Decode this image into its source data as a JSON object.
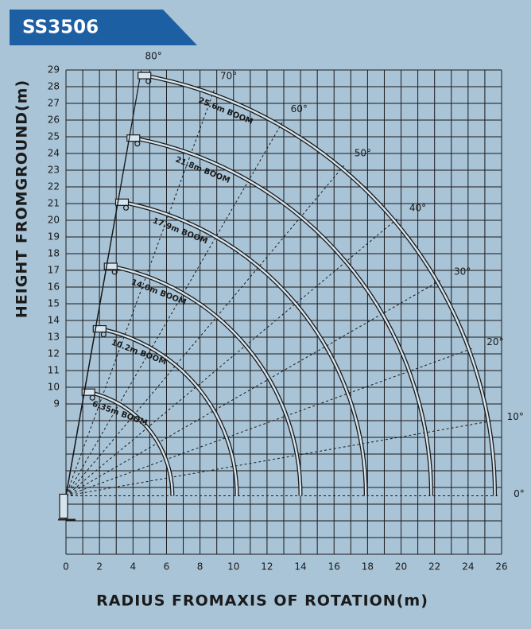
{
  "chart_data": {
    "type": "working-range",
    "title": "SS3506",
    "x_label": "RADIUS FROMAXIS OF ROTATION(m)",
    "y_label": "HEIGHT FROMGROUND(m)",
    "xlim": [
      0,
      26
    ],
    "ylim": [
      0,
      29
    ],
    "xticks": [
      0,
      2,
      4,
      6,
      8,
      10,
      12,
      14,
      16,
      18,
      20,
      22,
      24,
      26
    ],
    "yticks": [
      9,
      10,
      11,
      12,
      13,
      14,
      15,
      16,
      17,
      18,
      19,
      20,
      21,
      22,
      23,
      24,
      25,
      26,
      27,
      28,
      29
    ],
    "grid": true,
    "pivot": [
      0,
      3.5
    ],
    "angles": [
      {
        "value": 0,
        "label": "0°"
      },
      {
        "value": 10,
        "label": "10°"
      },
      {
        "value": 20,
        "label": "20°"
      },
      {
        "value": 30,
        "label": "30°"
      },
      {
        "value": 40,
        "label": "40°"
      },
      {
        "value": 50,
        "label": "50°"
      },
      {
        "value": 60,
        "label": "60°"
      },
      {
        "value": 70,
        "label": "70°"
      },
      {
        "value": 80,
        "label": "80°"
      }
    ],
    "series": [
      {
        "name": "6.35m BOOM",
        "value": 6.35
      },
      {
        "name": "10.2m BOOM",
        "value": 10.2
      },
      {
        "name": "14.0m BOOM",
        "value": 14.0
      },
      {
        "name": "17.9m BOOM",
        "value": 17.9
      },
      {
        "name": "21.8m BOOM",
        "value": 21.8
      },
      {
        "name": "25.6m BOOM",
        "value": 25.6
      }
    ]
  }
}
